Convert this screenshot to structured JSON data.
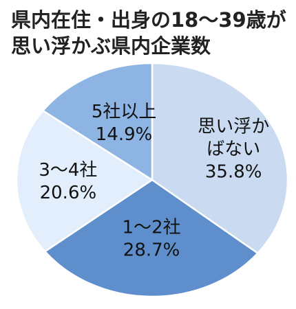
{
  "title": {
    "line1": "県内在住・出身の18～39歳が",
    "line2": "思い浮かぶ県内企業数"
  },
  "chart_data": {
    "type": "pie",
    "title": "県内在住・出身の18～39歳が思い浮かぶ県内企業数",
    "slices": [
      {
        "label_lines": [
          "思い浮か",
          "ばない"
        ],
        "value": 35.8,
        "value_label": "35.8%",
        "color": "#c9daf1"
      },
      {
        "label_lines": [
          "1～2社"
        ],
        "value": 28.7,
        "value_label": "28.7%",
        "color": "#5e8fcc"
      },
      {
        "label_lines": [
          "3～4社"
        ],
        "value": 20.6,
        "value_label": "20.6%",
        "color": "#e2eefb"
      },
      {
        "label_lines": [
          "5社以上"
        ],
        "value": 14.9,
        "value_label": "14.9%",
        "color": "#8eb4e3"
      }
    ],
    "start_angle_deg": 0,
    "direction": "clockwise"
  }
}
